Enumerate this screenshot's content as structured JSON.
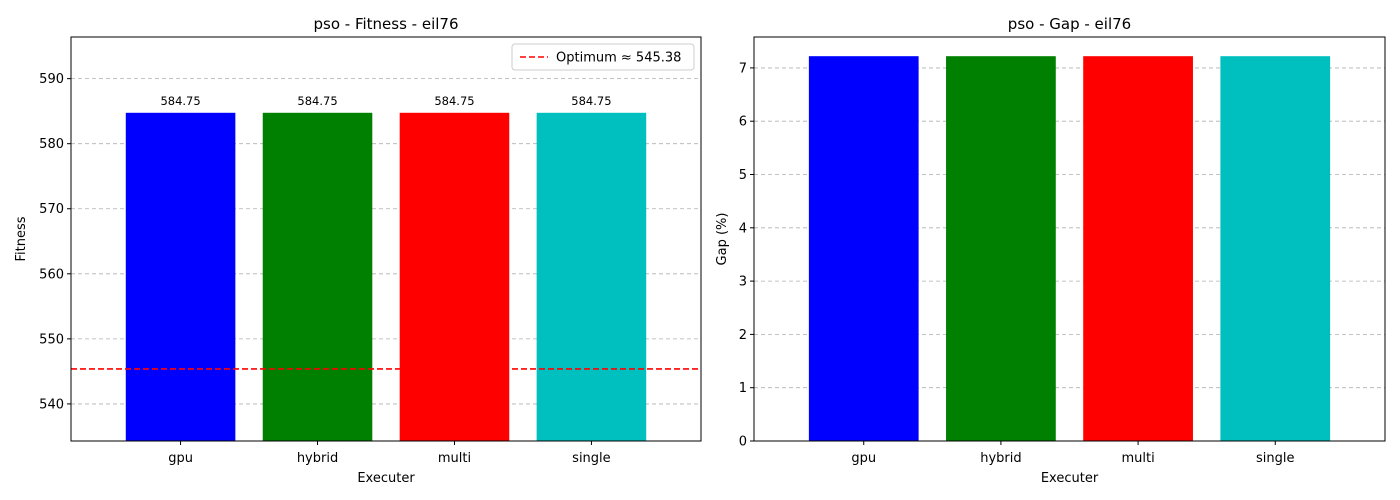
{
  "chart_data": [
    {
      "type": "bar",
      "title": "pso - Fitness - eil76",
      "xlabel": "Executer",
      "ylabel": "Fitness",
      "categories": [
        "gpu",
        "hybrid",
        "multi",
        "single"
      ],
      "values": [
        584.75,
        584.75,
        584.75,
        584.75
      ],
      "value_labels": [
        "584.75",
        "584.75",
        "584.75",
        "584.75"
      ],
      "colors": [
        "#0000ff",
        "#008000",
        "#ff0000",
        "#00bfbf"
      ],
      "ylim": [
        534.3,
        596.4
      ],
      "yticks": [
        540,
        550,
        560,
        570,
        580,
        590
      ],
      "grid": "y, dashed",
      "reference_line": {
        "value": 545.38,
        "label": "Optimum ≈ 545.38",
        "color": "#ff0000",
        "style": "dashed"
      },
      "legend": "top-right"
    },
    {
      "type": "bar",
      "title": "pso - Gap - eil76",
      "xlabel": "Executer",
      "ylabel": "Gap (%)",
      "categories": [
        "gpu",
        "hybrid",
        "multi",
        "single"
      ],
      "values": [
        7.22,
        7.22,
        7.22,
        7.22
      ],
      "colors": [
        "#0000ff",
        "#008000",
        "#ff0000",
        "#00bfbf"
      ],
      "ylim": [
        0,
        7.58
      ],
      "yticks": [
        0,
        1,
        2,
        3,
        4,
        5,
        6,
        7
      ],
      "grid": "y, dashed"
    }
  ]
}
